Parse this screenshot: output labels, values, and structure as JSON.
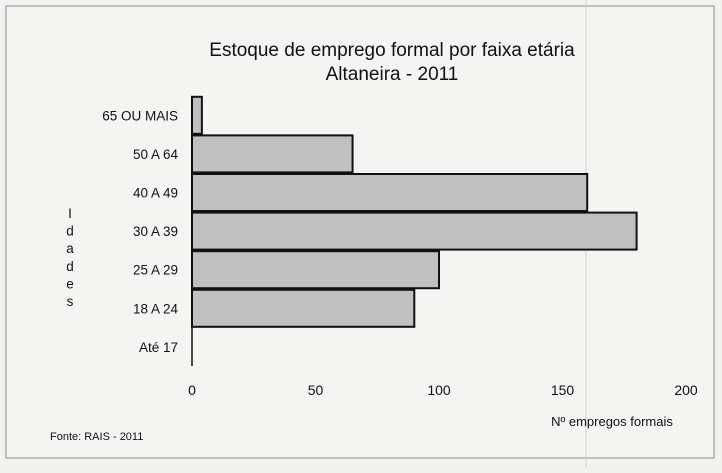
{
  "chart_data": {
    "type": "bar",
    "orientation": "horizontal",
    "title": "Estoque de emprego formal por faixa etária",
    "subtitle": "Altaneira - 2011",
    "categories": [
      "65 OU MAIS",
      "50 A 64",
      "40 A 49",
      "30 A 39",
      "25 A 29",
      "18 A 24",
      "Até 17"
    ],
    "values": [
      4,
      65,
      160,
      180,
      100,
      90,
      0
    ],
    "xlabel": "Nº empregos formais",
    "ylabel": "Idades",
    "xlim": [
      0,
      200
    ],
    "xticks": [
      "0",
      "50",
      "100",
      "150",
      "200"
    ],
    "grid": false,
    "bar_color": "#c0c0c0",
    "source": "Fonte: RAIS - 2011"
  }
}
